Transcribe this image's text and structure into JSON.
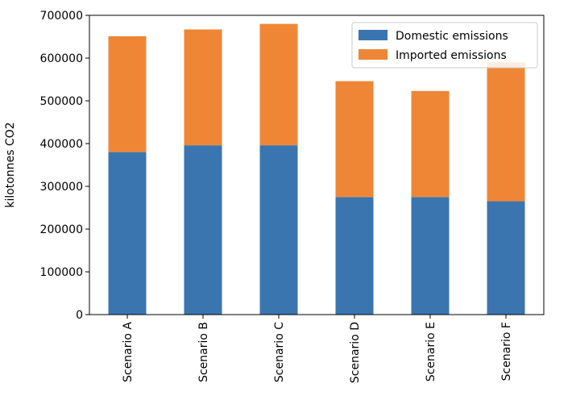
{
  "chart_data": {
    "type": "bar",
    "stacked": true,
    "title": "",
    "xlabel": "",
    "ylabel": "kilotonnes CO2",
    "categories": [
      "Scenario A",
      "Scenario B",
      "Scenario C",
      "Scenario D",
      "Scenario E",
      "Scenario F"
    ],
    "series": [
      {
        "name": "Domestic emissions",
        "color": "#3a75b0",
        "values": [
          380000,
          396000,
          396000,
          275000,
          275000,
          265000
        ]
      },
      {
        "name": "Imported emissions",
        "color": "#ef8636",
        "values": [
          271000,
          271000,
          284000,
          271000,
          248000,
          325000
        ]
      }
    ],
    "ylim": [
      0,
      700000
    ],
    "yticks": [
      0,
      100000,
      200000,
      300000,
      400000,
      500000,
      600000,
      700000
    ],
    "ytick_labels": [
      "0",
      "100000",
      "200000",
      "300000",
      "400000",
      "500000",
      "600000",
      "700000"
    ],
    "grid": false,
    "legend_position": "top-right"
  }
}
